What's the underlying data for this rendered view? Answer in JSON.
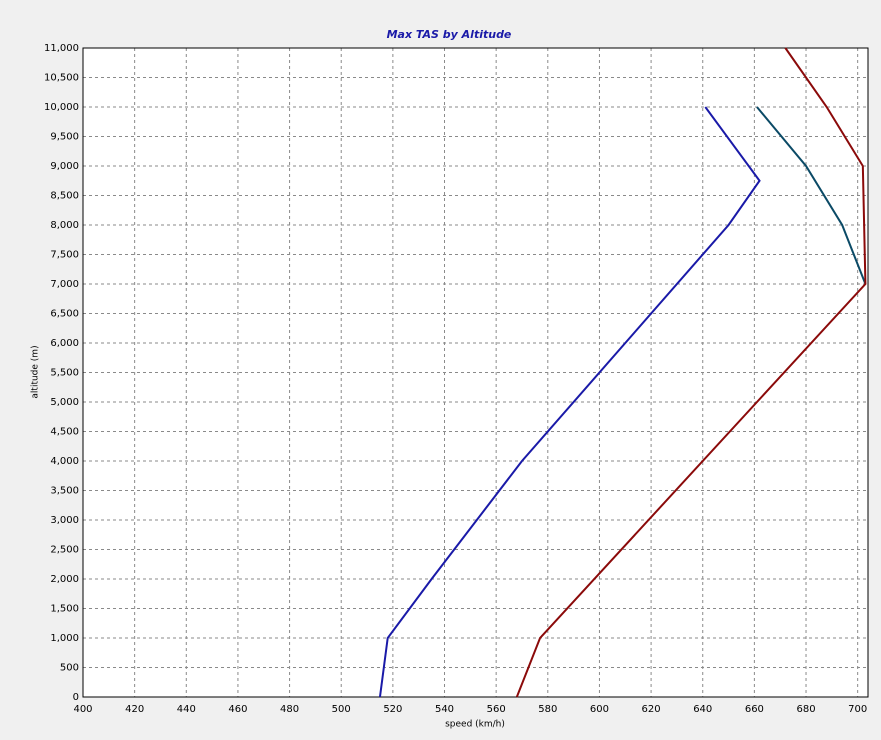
{
  "chart_data": {
    "type": "line",
    "title": "Max TAS by Altitude",
    "x_label": "speed (km/h)",
    "y_label": "altitude (m)",
    "xlim": [
      400,
      704
    ],
    "ylim": [
      0,
      11000
    ],
    "grid": true,
    "xticks": [
      400,
      420,
      440,
      460,
      480,
      500,
      520,
      540,
      560,
      580,
      600,
      620,
      640,
      660,
      680,
      700
    ],
    "yticks": [
      0,
      500,
      {
        "value": 1000,
        "label": "1,000"
      },
      {
        "value": 1500,
        "label": "1,500"
      },
      {
        "value": 2000,
        "label": "2,000"
      },
      {
        "value": 2500,
        "label": "2,500"
      },
      {
        "value": 3000,
        "label": "3,000"
      },
      {
        "value": 3500,
        "label": "3,500"
      },
      {
        "value": 4000,
        "label": "4,000"
      },
      {
        "value": 4500,
        "label": "4,500"
      },
      {
        "value": 5000,
        "label": "5,000"
      },
      {
        "value": 5500,
        "label": "5,500"
      },
      {
        "value": 6000,
        "label": "6,000"
      },
      {
        "value": 6500,
        "label": "6,500"
      },
      {
        "value": 7000,
        "label": "7,000"
      },
      {
        "value": 7500,
        "label": "7,500"
      },
      {
        "value": 8000,
        "label": "8,000"
      },
      {
        "value": 8500,
        "label": "8,500"
      },
      {
        "value": 9000,
        "label": "9,000"
      },
      {
        "value": 9500,
        "label": "9,500"
      },
      {
        "value": 10000,
        "label": "10,000"
      },
      {
        "value": 10500,
        "label": "10,500"
      },
      {
        "value": 11000,
        "label": "11,000"
      }
    ],
    "series": [
      {
        "color": "#1a1aa8",
        "x": [
          515,
          518,
          535,
          570,
          610,
          650,
          662,
          641
        ],
        "values": [
          0,
          1000,
          2000,
          4000,
          6000,
          8000,
          8750,
          10000
        ]
      },
      {
        "color": "#0b4a66",
        "x": [
          703,
          694,
          680,
          661
        ],
        "values": [
          7000,
          8000,
          9000,
          10000
        ]
      },
      {
        "color": "#8b0a0a",
        "x": [
          568,
          577,
          703,
          702,
          688,
          672
        ],
        "values": [
          0,
          1000,
          7000,
          9000,
          10000,
          11000
        ]
      }
    ]
  }
}
